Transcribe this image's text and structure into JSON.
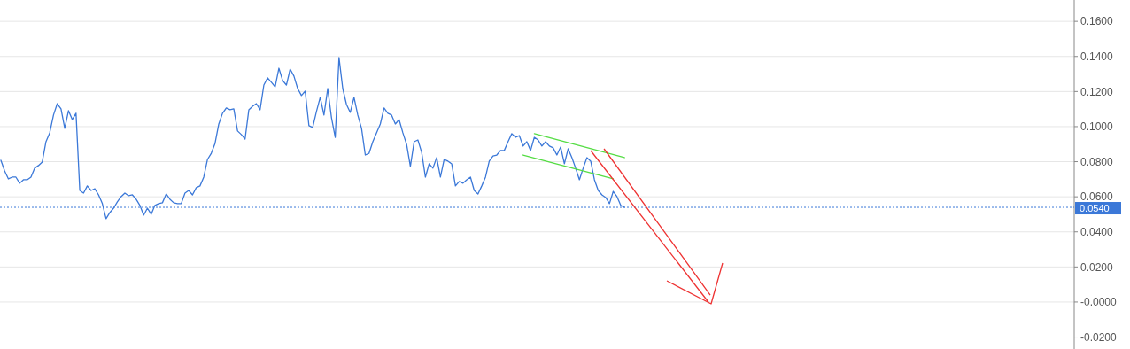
{
  "chart_data": {
    "type": "line",
    "ylim": [
      -0.0268,
      0.1722
    ],
    "categories": [
      null,
      null,
      null,
      null,
      null,
      null,
      null,
      null,
      null,
      null,
      null,
      null,
      null,
      null,
      null,
      null,
      null,
      null,
      null,
      null,
      null,
      null,
      null,
      null,
      null,
      null,
      null,
      null,
      null,
      null,
      null,
      null,
      null,
      null,
      null,
      null,
      null,
      null,
      null,
      null,
      null,
      null,
      null,
      null,
      null,
      null,
      null,
      null,
      null,
      null,
      null,
      null,
      null,
      null,
      null,
      null,
      null,
      null,
      null,
      null,
      null,
      null,
      null,
      null,
      null,
      null,
      null,
      null,
      null,
      null,
      null,
      null,
      null,
      null,
      null,
      null,
      null,
      null,
      null,
      null,
      null,
      null,
      null,
      null,
      null,
      null,
      null,
      null,
      null,
      null,
      null,
      null,
      null,
      null,
      null,
      null,
      null,
      null,
      null,
      null,
      null,
      null,
      null,
      null,
      null,
      null,
      null,
      null,
      null,
      null,
      null,
      null,
      null,
      null,
      null,
      null,
      null,
      null,
      null,
      null,
      null,
      null,
      null,
      null,
      null,
      null,
      null,
      null,
      null,
      null,
      null,
      null,
      null,
      null,
      null,
      null,
      null,
      null,
      null,
      null,
      null,
      null,
      null,
      null,
      null,
      null,
      null,
      null,
      null,
      null,
      null,
      null,
      null,
      null,
      null,
      null,
      null,
      null,
      null,
      null,
      null,
      null,
      null,
      null,
      null,
      null,
      null,
      null,
      null,
      null,
      null,
      null,
      null,
      null,
      null,
      null,
      null,
      null,
      null,
      null,
      null,
      null,
      null,
      null,
      null,
      null,
      null,
      null,
      null,
      null,
      null,
      null,
      null,
      null,
      null,
      null,
      null,
      null,
      null,
      null,
      null,
      null,
      null,
      null,
      null,
      null,
      null,
      null,
      null,
      null,
      null,
      null,
      null,
      null,
      null,
      null,
      null,
      null,
      null,
      null,
      null,
      null,
      null,
      null,
      null,
      null,
      null,
      null,
      null,
      null,
      null,
      null,
      null,
      null,
      null,
      null,
      null,
      null,
      null,
      null,
      null,
      null,
      null,
      null,
      null,
      null,
      null,
      null,
      null,
      null,
      null,
      null,
      null,
      null,
      null,
      null,
      null,
      null,
      null,
      null,
      null,
      null,
      null,
      null,
      null,
      null,
      null,
      null,
      null,
      null,
      null,
      null,
      null,
      null,
      null,
      null,
      null,
      null,
      null,
      null,
      null,
      null,
      null,
      null,
      null,
      null
    ],
    "yticks": [
      {
        "value": 0.16,
        "label": "0.1600"
      },
      {
        "value": 0.14,
        "label": "0.1400"
      },
      {
        "value": 0.12,
        "label": "0.1200"
      },
      {
        "value": 0.1,
        "label": "0.1000"
      },
      {
        "value": 0.08,
        "label": "0.0800"
      },
      {
        "value": 0.06,
        "label": "0.0600"
      },
      {
        "value": 0.04,
        "label": "0.0400"
      },
      {
        "value": 0.02,
        "label": "0.0200"
      },
      {
        "value": 0,
        "label": "-0.0000"
      },
      {
        "value": -0.02,
        "label": "-0.0200"
      }
    ],
    "grid": "y",
    "series": [
      {
        "color": "#3b78d8",
        "values": [
          0.0808,
          0.0747,
          0.0702,
          0.0712,
          0.0712,
          0.0677,
          0.0697,
          0.0697,
          0.0712,
          0.0763,
          0.0778,
          0.0798,
          0.0914,
          0.0965,
          0.1066,
          0.1131,
          0.1101,
          0.099,
          0.1091,
          0.104,
          0.1076,
          0.0636,
          0.0621,
          0.0662,
          0.0636,
          0.0646,
          0.0611,
          0.0561,
          0.0475,
          0.051,
          0.0535,
          0.0571,
          0.0601,
          0.0621,
          0.0606,
          0.0611,
          0.0586,
          0.0551,
          0.0495,
          0.0535,
          0.05,
          0.0551,
          0.0561,
          0.0566,
          0.0616,
          0.0586,
          0.0566,
          0.0561,
          0.0561,
          0.0621,
          0.0636,
          0.0611,
          0.0652,
          0.0662,
          0.0712,
          0.0813,
          0.0848,
          0.0904,
          0.1015,
          0.1076,
          0.1106,
          0.1096,
          0.1101,
          0.0975,
          0.0955,
          0.0929,
          0.1096,
          0.1116,
          0.1131,
          0.1096,
          0.1237,
          0.1278,
          0.1253,
          0.1227,
          0.1333,
          0.1263,
          0.1237,
          0.1328,
          0.1288,
          0.1217,
          0.1177,
          0.1202,
          0.1005,
          0.0995,
          0.1086,
          0.1167,
          0.1066,
          0.1217,
          0.1051,
          0.0939,
          0.1394,
          0.1217,
          0.1126,
          0.1081,
          0.1167,
          0.1066,
          0.099,
          0.0838,
          0.0848,
          0.0914,
          0.0965,
          0.1015,
          0.1106,
          0.1076,
          0.1066,
          0.1015,
          0.104,
          0.0965,
          0.0899,
          0.0773,
          0.0914,
          0.0924,
          0.0854,
          0.0712,
          0.0788,
          0.0763,
          0.0823,
          0.0712,
          0.0813,
          0.0803,
          0.0788,
          0.0662,
          0.0687,
          0.0677,
          0.0697,
          0.0712,
          0.0636,
          0.0616,
          0.0662,
          0.0712,
          0.0803,
          0.0833,
          0.0838,
          0.0864,
          0.0864,
          0.0914,
          0.096,
          0.0939,
          0.0949,
          0.0889,
          0.0914,
          0.0864,
          0.0939,
          0.0924,
          0.0889,
          0.0914,
          0.0889,
          0.0879,
          0.0838,
          0.0884,
          0.0788,
          0.0874,
          0.0823,
          0.0763,
          0.0697,
          0.0763,
          0.0823,
          0.0803,
          0.0697,
          0.0636,
          0.0611,
          0.0596,
          0.0561,
          0.0631,
          0.0601,
          0.0551,
          0.054,
          null,
          null,
          null,
          null,
          null,
          null,
          null,
          null,
          null,
          null,
          null,
          null,
          null,
          null,
          null,
          null,
          null,
          null,
          null,
          null,
          null,
          null,
          null,
          null,
          null,
          null,
          null,
          null,
          null,
          null,
          null,
          null,
          null,
          null,
          null,
          null,
          null,
          null,
          null,
          null,
          null,
          null,
          null,
          null,
          null,
          null,
          null,
          null,
          null,
          null,
          null,
          null,
          null,
          null,
          null,
          null,
          null,
          null,
          null,
          null,
          null,
          null,
          null,
          null,
          null,
          null,
          null,
          null,
          null,
          null,
          null,
          null,
          null,
          null,
          null,
          null,
          null,
          null,
          null,
          null,
          null,
          null,
          null,
          null,
          null,
          null,
          null,
          null,
          null,
          null,
          null,
          null,
          null,
          null,
          null,
          null,
          null,
          null,
          null,
          null,
          null,
          null,
          null,
          null,
          null,
          null,
          null,
          null,
          null,
          null,
          null,
          null,
          null,
          null,
          null,
          null,
          null,
          null,
          null
        ]
      },
      {
        "color": "#55dd44",
        "values": [
          null,
          null,
          null,
          null,
          null,
          null,
          null,
          null,
          null,
          null,
          null,
          null,
          null,
          null,
          null,
          null,
          null,
          null,
          null,
          null,
          null,
          null,
          null,
          null,
          null,
          null,
          null,
          null,
          null,
          null,
          null,
          null,
          null,
          null,
          null,
          null,
          null,
          null,
          null,
          null,
          null,
          null,
          null,
          null,
          null,
          null,
          null,
          null,
          null,
          null,
          null,
          null,
          null,
          null,
          null,
          null,
          null,
          null,
          null,
          null,
          null,
          null,
          null,
          null,
          null,
          null,
          null,
          null,
          null,
          null,
          null,
          null,
          null,
          null,
          null,
          null,
          null,
          null,
          null,
          null,
          null,
          null,
          null,
          null,
          null,
          null,
          null,
          null,
          null,
          null,
          null,
          null,
          null,
          null,
          null,
          null,
          null,
          null,
          null,
          null,
          null,
          null,
          null,
          null,
          null,
          null,
          null,
          null,
          null,
          null,
          null,
          null,
          null,
          null,
          null,
          null,
          null,
          null,
          null,
          null,
          null,
          null,
          null,
          null,
          null,
          null,
          null,
          null,
          null,
          null,
          null,
          null,
          null,
          null,
          null,
          null,
          null,
          null,
          null,
          null,
          null,
          null,
          0.096,
          null,
          null,
          null,
          null,
          null,
          null,
          null,
          null,
          null,
          null,
          null,
          null,
          null,
          null,
          null,
          null,
          null,
          null,
          null,
          null,
          null,
          null,
          null,
          0.0823,
          null,
          null,
          null,
          null,
          null,
          null,
          null,
          null,
          null,
          null,
          null,
          null,
          null,
          null,
          null,
          null,
          null,
          null,
          null,
          null,
          null,
          null,
          null,
          null,
          null,
          null,
          null,
          null,
          null,
          null,
          null,
          null,
          null,
          null,
          null,
          null,
          null,
          null,
          null,
          null,
          null,
          null,
          null,
          null,
          null,
          null,
          null,
          null,
          null,
          null,
          null,
          null,
          null,
          null,
          null,
          null,
          null,
          null,
          null,
          null,
          null,
          null,
          null,
          null,
          null,
          null,
          null,
          null,
          null,
          null,
          null,
          null,
          null,
          null,
          null,
          null,
          null,
          null,
          null,
          null,
          null,
          null,
          null,
          null,
          null,
          null,
          null,
          null,
          null,
          null,
          null,
          null,
          null,
          null,
          null,
          null,
          null,
          null,
          null,
          null,
          null,
          null,
          null,
          null,
          null,
          null,
          null,
          null,
          null,
          null,
          null,
          null,
          null,
          null,
          null,
          null,
          null,
          null,
          null
        ]
      },
      {
        "color": "#55dd44",
        "values": [
          null,
          null,
          null,
          null,
          null,
          null,
          null,
          null,
          null,
          null,
          null,
          null,
          null,
          null,
          null,
          null,
          null,
          null,
          null,
          null,
          null,
          null,
          null,
          null,
          null,
          null,
          null,
          null,
          null,
          null,
          null,
          null,
          null,
          null,
          null,
          null,
          null,
          null,
          null,
          null,
          null,
          null,
          null,
          null,
          null,
          null,
          null,
          null,
          null,
          null,
          null,
          null,
          null,
          null,
          null,
          null,
          null,
          null,
          null,
          null,
          null,
          null,
          null,
          null,
          null,
          null,
          null,
          null,
          null,
          null,
          null,
          null,
          null,
          null,
          null,
          null,
          null,
          null,
          null,
          null,
          null,
          null,
          null,
          null,
          null,
          null,
          null,
          null,
          null,
          null,
          null,
          null,
          null,
          null,
          null,
          null,
          null,
          null,
          null,
          null,
          null,
          null,
          null,
          null,
          null,
          null,
          null,
          null,
          null,
          null,
          null,
          null,
          null,
          null,
          null,
          null,
          null,
          null,
          null,
          null,
          null,
          null,
          null,
          null,
          null,
          null,
          null,
          null,
          null,
          null,
          null,
          null,
          null,
          null,
          null,
          null,
          null,
          null,
          null,
          0.0838,
          null,
          null,
          null,
          null,
          null,
          null,
          null,
          null,
          null,
          null,
          null,
          null,
          null,
          null,
          null,
          null,
          null,
          null,
          null,
          null,
          null,
          null,
          null,
          0.0702,
          null,
          null,
          null,
          null,
          null,
          null,
          null,
          null,
          null,
          null,
          null,
          null,
          null,
          null,
          null,
          null,
          null,
          null,
          null,
          null,
          null,
          null,
          null,
          null,
          null,
          null,
          null,
          null,
          null,
          null,
          null,
          null,
          null,
          null,
          null,
          null,
          null,
          null,
          null,
          null,
          null,
          null,
          null,
          null,
          null,
          null,
          null,
          null,
          null,
          null,
          null,
          null,
          null,
          null,
          null,
          null,
          null,
          null,
          null,
          null,
          null,
          null,
          null,
          null,
          null,
          null,
          null,
          null,
          null,
          null,
          null,
          null,
          null,
          null,
          null,
          null,
          null,
          null,
          null,
          null,
          null,
          null,
          null,
          null,
          null,
          null,
          null,
          null,
          null,
          null,
          null,
          null,
          null,
          null,
          null,
          null,
          null,
          null,
          null,
          null,
          null,
          null,
          null,
          null,
          null,
          null,
          null,
          null,
          null,
          null,
          null,
          null,
          null,
          null,
          null,
          null,
          null,
          null,
          null,
          null,
          null,
          null
        ]
      }
    ],
    "ref_lines": [
      {
        "axis": "y",
        "value": 0.054,
        "label": "0.0540",
        "color": "#3b78d8",
        "line_style": "dotted"
      }
    ]
  }
}
